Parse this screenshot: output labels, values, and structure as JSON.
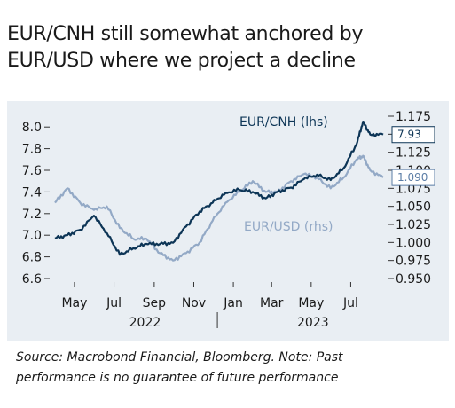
{
  "title_lines": [
    "EUR/CNH still somewhat anchored by",
    "EUR/USD where we project a decline"
  ],
  "source_lines": [
    "Source: Macrobond Financial, Bloomberg. Note: Past",
    "performance is no guarantee of future performance"
  ],
  "colors": {
    "eurcnh": "#0d3556",
    "eurusd": "#93a9c6",
    "background": "#e9eef3"
  },
  "chart_data": {
    "type": "line",
    "x_tick_labels": [
      "May",
      "Jul",
      "Sep",
      "Nov",
      "Jan",
      "Mar",
      "May",
      "Jul"
    ],
    "x_year_labels": [
      "2022",
      "2023"
    ],
    "left_axis": {
      "ylim": [
        6.6,
        8.1
      ],
      "ticks": [
        "6.6",
        "6.8",
        "7.0",
        "7.2",
        "7.4",
        "7.6",
        "7.8",
        "8.0"
      ]
    },
    "right_axis": {
      "ylim": [
        0.95,
        1.175
      ],
      "ticks": [
        "0.950",
        "0.975",
        "1.000",
        "1.025",
        "1.050",
        "1.075",
        "1.100",
        "1.125",
        "1.150",
        "1.175"
      ]
    },
    "series": [
      {
        "name": "EUR/CNH (lhs)",
        "axis": "left",
        "last_value_label": "7.93",
        "x": [
          "2022-04-01",
          "2022-04-20",
          "2022-05-10",
          "2022-05-31",
          "2022-06-20",
          "2022-07-10",
          "2022-07-31",
          "2022-08-20",
          "2022-09-10",
          "2022-09-30",
          "2022-10-20",
          "2022-11-10",
          "2022-11-30",
          "2022-12-20",
          "2023-01-10",
          "2023-01-31",
          "2023-02-20",
          "2023-03-10",
          "2023-03-31",
          "2023-04-20",
          "2023-05-10",
          "2023-05-31",
          "2023-06-20",
          "2023-07-10",
          "2023-07-20",
          "2023-07-31",
          "2023-08-20"
        ],
        "values": [
          6.97,
          7.0,
          7.05,
          7.18,
          7.02,
          6.82,
          6.88,
          6.92,
          6.92,
          6.93,
          7.08,
          7.22,
          7.3,
          7.39,
          7.42,
          7.4,
          7.34,
          7.4,
          7.44,
          7.52,
          7.56,
          7.51,
          7.62,
          7.84,
          8.05,
          7.93,
          7.93
        ]
      },
      {
        "name": "EUR/USD (rhs)",
        "axis": "right",
        "last_value_label": "1.090",
        "x": [
          "2022-04-01",
          "2022-04-20",
          "2022-05-10",
          "2022-05-31",
          "2022-06-20",
          "2022-07-10",
          "2022-07-31",
          "2022-08-20",
          "2022-09-10",
          "2022-09-30",
          "2022-10-20",
          "2022-11-10",
          "2022-11-30",
          "2022-12-20",
          "2023-01-10",
          "2023-01-31",
          "2023-02-20",
          "2023-03-10",
          "2023-03-31",
          "2023-04-20",
          "2023-05-10",
          "2023-05-31",
          "2023-06-20",
          "2023-07-10",
          "2023-07-20",
          "2023-07-31",
          "2023-08-20"
        ],
        "values": [
          1.055,
          1.075,
          1.055,
          1.045,
          1.05,
          1.02,
          1.005,
          1.005,
          0.985,
          0.975,
          0.985,
          1.0,
          1.03,
          1.055,
          1.07,
          1.085,
          1.07,
          1.07,
          1.085,
          1.095,
          1.09,
          1.075,
          1.09,
          1.115,
          1.12,
          1.1,
          1.09
        ]
      }
    ],
    "series_labels_on_chart": true,
    "grid": false,
    "legend": "inline"
  }
}
